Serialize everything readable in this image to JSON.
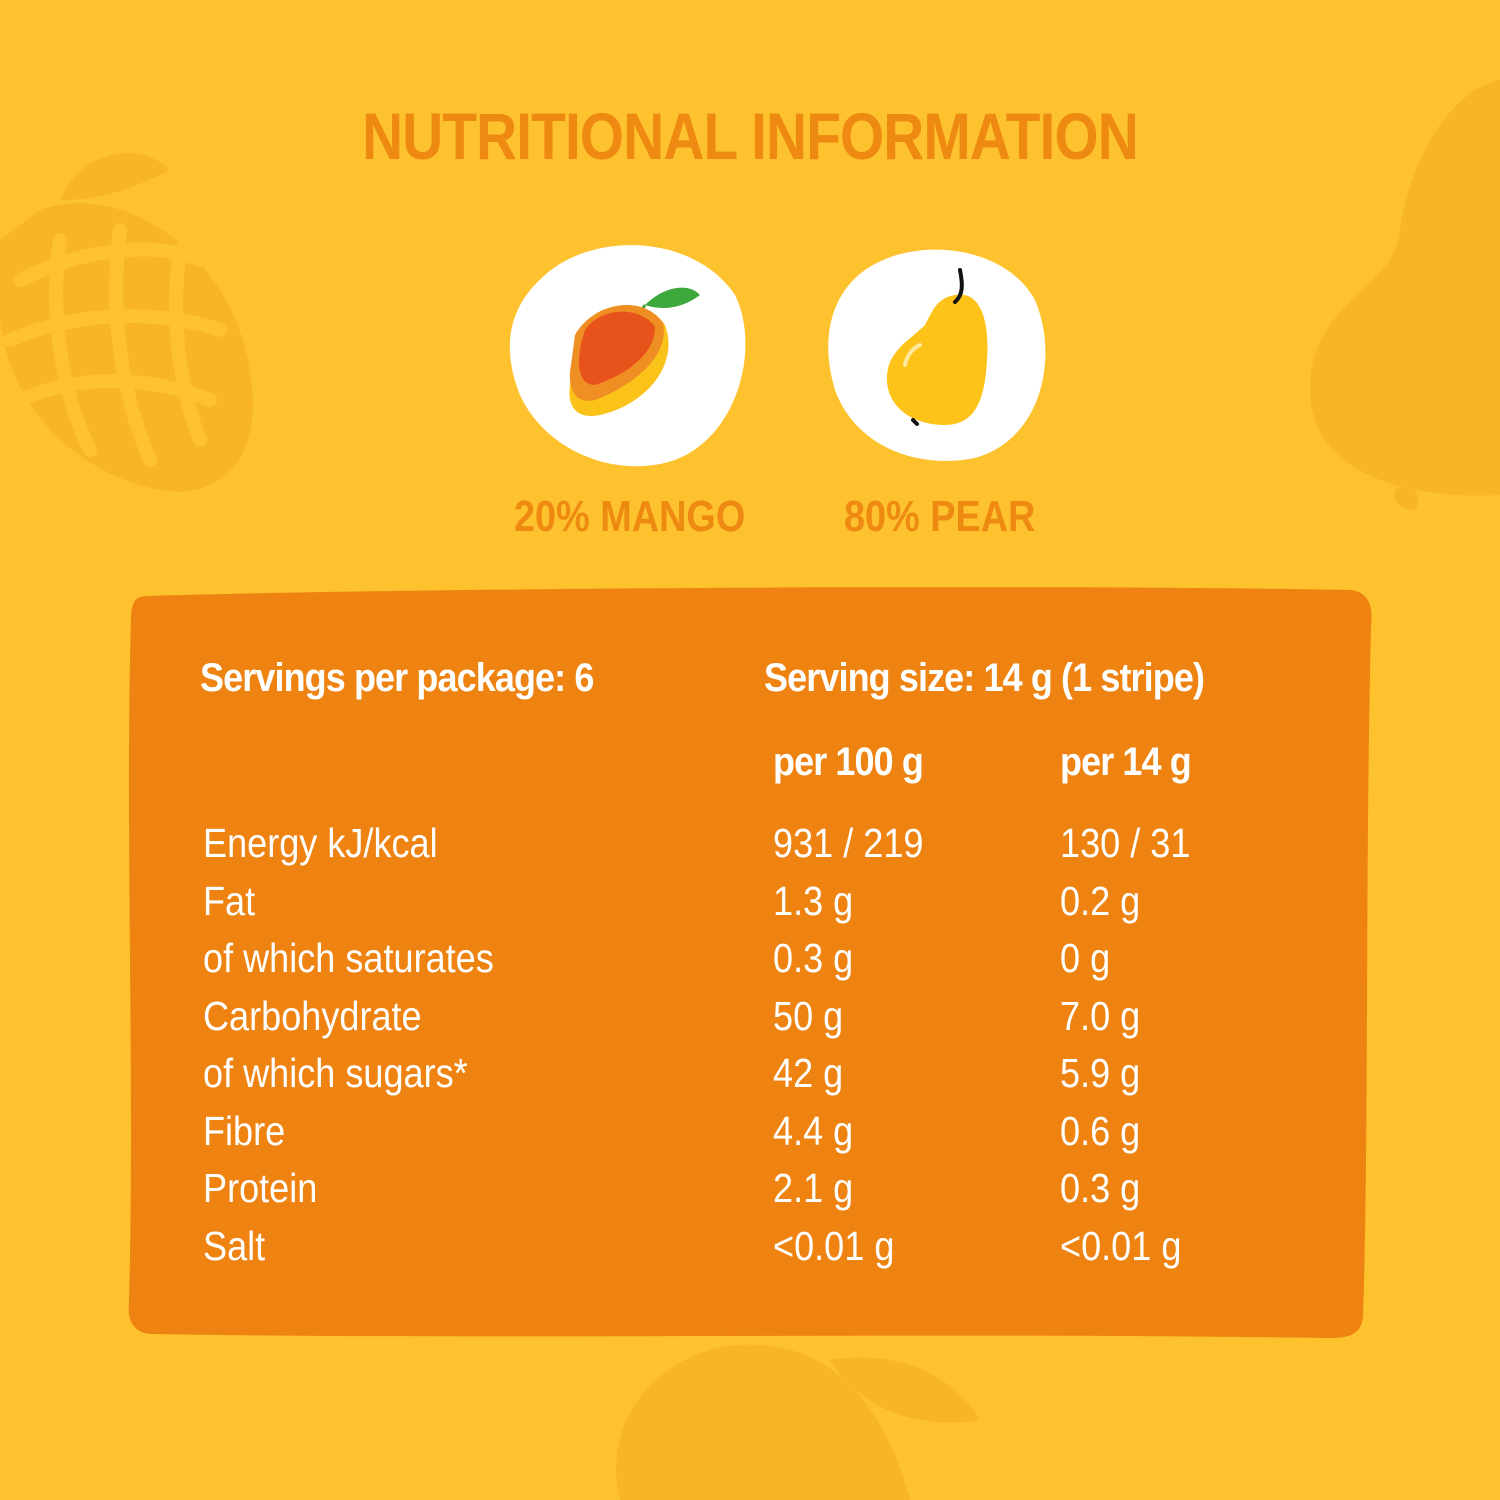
{
  "title": "NUTRITIONAL INFORMATION",
  "colors": {
    "background": "#FDC22D",
    "accent": "#EE8A12",
    "panel": "#EE8311",
    "text": "#FFFFFF"
  },
  "fruits": [
    {
      "icon": "mango-icon",
      "label": "20% MANGO"
    },
    {
      "icon": "pear-icon",
      "label": "80% PEAR"
    }
  ],
  "table": {
    "servings_per_package": "Servings per package: 6",
    "serving_size": "Serving size: 14 g (1 stripe)",
    "columns": [
      "per 100 g",
      "per 14 g"
    ],
    "rows": [
      {
        "name": "Energy kJ/kcal",
        "per100": "931 / 219",
        "perServing": "130 / 31"
      },
      {
        "name": "Fat",
        "per100": "1.3 g",
        "perServing": "0.2 g"
      },
      {
        "name": "of which saturates",
        "per100": "0.3 g",
        "perServing": "0 g"
      },
      {
        "name": "Carbohydrate",
        "per100": "50 g",
        "perServing": "7.0 g"
      },
      {
        "name": "of which sugars*",
        "per100": "42 g",
        "perServing": "5.9 g"
      },
      {
        "name": "Fibre",
        "per100": "4.4 g",
        "perServing": "0.6 g"
      },
      {
        "name": "Protein",
        "per100": "2.1 g",
        "perServing": "0.3 g"
      },
      {
        "name": "Salt",
        "per100": "<0.01 g",
        "perServing": "<0.01 g"
      }
    ]
  }
}
